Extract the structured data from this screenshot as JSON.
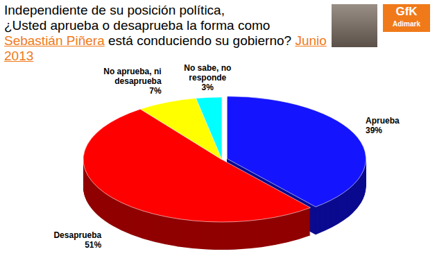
{
  "chart_data": {
    "type": "pie",
    "title": "Independiente de su posición política,",
    "subtitle": "¿Usted aprueba o desaprueba la forma como Sebastián Piñera está conduciendo su gobierno? Junio 2013",
    "subtitle_highlights": [
      "Sebastián Piñera",
      "Junio 2013"
    ],
    "source": "GfK Adimark",
    "categories": [
      "Aprueba",
      "Desaprueba",
      "No aprueba, ni desaprueba",
      "No sabe, no responde"
    ],
    "values": [
      39,
      51,
      7,
      3
    ],
    "value_labels": [
      "39%",
      "51%",
      "7%",
      "3%"
    ],
    "colors": [
      "#1414ff",
      "#ff0000",
      "#ffff00",
      "#00ffff"
    ],
    "data_labels": true
  }
}
